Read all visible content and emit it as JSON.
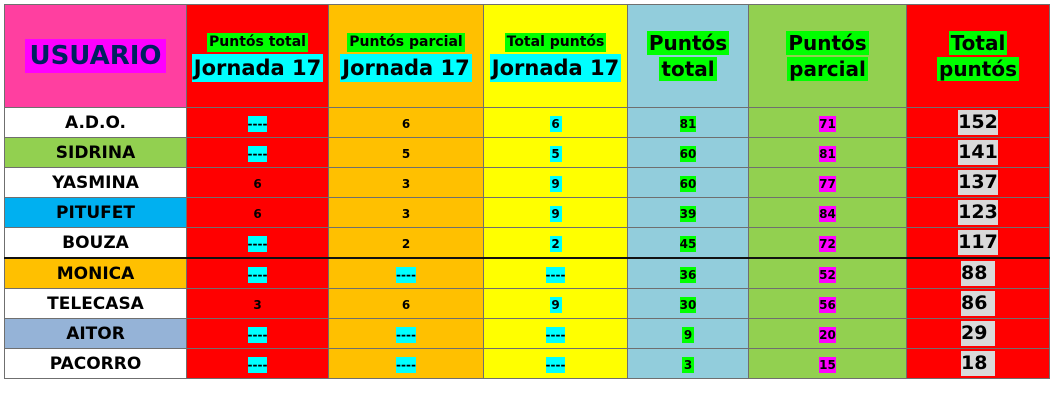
{
  "header": {
    "usuario": "USUARIO",
    "puntos_total_j": {
      "line1": "Puntós total",
      "line2": "Jornada 17"
    },
    "puntos_parcial_j": {
      "line1": "Puntós parcial",
      "line2": "Jornada 17"
    },
    "total_puntos_j": {
      "line1": "Total puntós",
      "line2": "Jornada 17"
    },
    "puntos_total": {
      "line1": "Puntós",
      "line2": "total"
    },
    "puntos_parcial": {
      "line1": "Puntós",
      "line2": "parcial"
    },
    "total_puntos": {
      "line1": "Total",
      "line2": "puntós"
    }
  },
  "rows": [
    {
      "user": "A.D.O.",
      "user_bg": "#ffffff",
      "pt_j": "----",
      "pp_j": "6",
      "tp_j": "6",
      "pt": "81",
      "pp": "71",
      "total": "152"
    },
    {
      "user": "SIDRINA",
      "user_bg": "#92d050",
      "pt_j": "----",
      "pp_j": "5",
      "tp_j": "5",
      "pt": "60",
      "pp": "81",
      "total": "141"
    },
    {
      "user": "YASMINA",
      "user_bg": "#ffffff",
      "pt_j": "6",
      "pp_j": "3",
      "tp_j": "9",
      "pt": "60",
      "pp": "77",
      "total": "137"
    },
    {
      "user": "PITUFET",
      "user_bg": "#00b0f0",
      "pt_j": "6",
      "pp_j": "3",
      "tp_j": "9",
      "pt": "39",
      "pp": "84",
      "total": "123"
    },
    {
      "user": "BOUZA",
      "user_bg": "#ffffff",
      "pt_j": "----",
      "pp_j": "2",
      "tp_j": "2",
      "pt": "45",
      "pp": "72",
      "total": "117"
    },
    {
      "user": "MONICA",
      "user_bg": "#ffc000",
      "pt_j": "----",
      "pp_j": "----",
      "tp_j": "----",
      "pt": "36",
      "pp": "52",
      "total": "88"
    },
    {
      "user": "TELECASA",
      "user_bg": "#ffffff",
      "pt_j": "3",
      "pp_j": "6",
      "tp_j": "9",
      "pt": "30",
      "pp": "56",
      "total": "86"
    },
    {
      "user": "AITOR",
      "user_bg": "#95b3d7",
      "pt_j": "----",
      "pp_j": "----",
      "tp_j": "----",
      "pt": "9",
      "pp": "20",
      "total": "29"
    },
    {
      "user": "PACORRO",
      "user_bg": "#ffffff",
      "pt_j": "----",
      "pp_j": "----",
      "tp_j": "----",
      "pt": "3",
      "pp": "15",
      "total": "18"
    }
  ]
}
